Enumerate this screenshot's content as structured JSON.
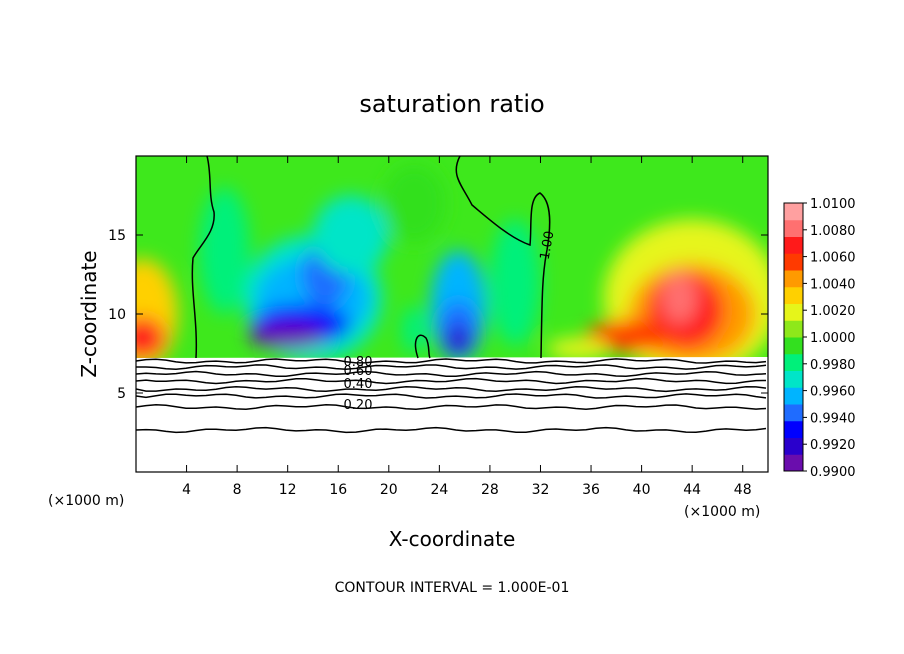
{
  "chart_data": {
    "type": "heatmap",
    "title": "saturation ratio",
    "xlabel": "X-coordinate",
    "ylabel": "Z-coordinate",
    "x_unit_label": "(×1000 m)",
    "footer": "CONTOUR INTERVAL = 1.000E-01",
    "xlim": [
      0,
      50
    ],
    "ylim": [
      0,
      20
    ],
    "x_ticks": [
      4,
      8,
      12,
      16,
      20,
      24,
      28,
      32,
      36,
      40,
      44,
      48
    ],
    "y_ticks": [
      5,
      10,
      15
    ],
    "colorbar": {
      "min": 0.99,
      "max": 1.01,
      "labels": [
        "1.0100",
        "1.0080",
        "1.0060",
        "1.0040",
        "1.0020",
        "1.0000",
        "0.9980",
        "0.9960",
        "0.9940",
        "0.9920",
        "0.9900"
      ],
      "colors": [
        "#6a0dad",
        "#2a00cc",
        "#0000ff",
        "#1f6cff",
        "#00b4ff",
        "#00e5c8",
        "#00f07a",
        "#33e01f",
        "#8ee81a",
        "#e6f51a",
        "#ffd000",
        "#ff9a00",
        "#ff3a00",
        "#ff1a1a",
        "#ff7070",
        "#ffa0a0"
      ]
    },
    "contour_labels": [
      "1.00",
      "0.80",
      "0.60",
      "0.40",
      "0.20"
    ],
    "contour_interval": 0.1
  }
}
